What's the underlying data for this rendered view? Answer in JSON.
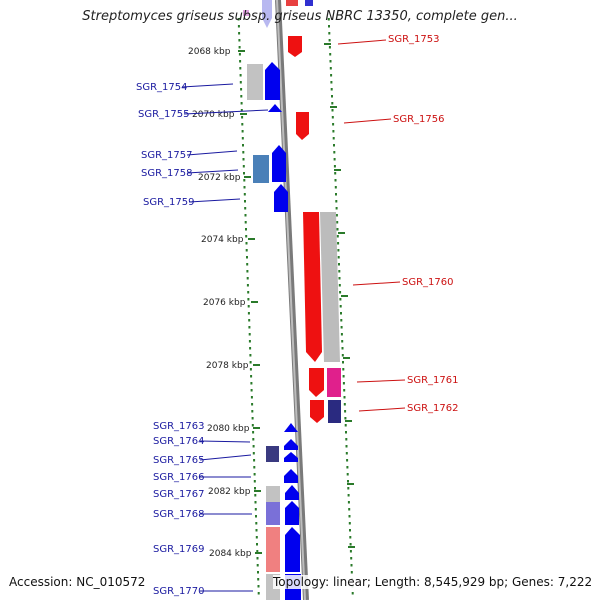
{
  "title": "Streptomyces griseus subsp. griseus NBRC 13350, complete gen...",
  "footer": {
    "accession": "Accession: NC_010572",
    "summary": "Topology: linear; Length: 8,545,929 bp; Genes: 7,222"
  },
  "colors": {
    "forward_gene": "#0000ee",
    "reverse_gene": "#ee0000",
    "label_forward": "#1a1aa0",
    "label_reverse": "#cc1111",
    "ruler_dots": "#2a7a2a",
    "backbone": "#8a8a8a"
  },
  "ruler_ticks": [
    {
      "label": "2068 kbp"
    },
    {
      "label": "2070 kbp"
    },
    {
      "label": "2072 kbp"
    },
    {
      "label": "2074 kbp"
    },
    {
      "label": "2076 kbp"
    },
    {
      "label": "2078 kbp"
    },
    {
      "label": "2080 kbp"
    },
    {
      "label": "2082 kbp"
    },
    {
      "label": "2084 kbp"
    }
  ],
  "left_labels": [
    {
      "label": "SGR_1754"
    },
    {
      "label": "SGR_1755"
    },
    {
      "label": "SGR_1757"
    },
    {
      "label": "SGR_1758"
    },
    {
      "label": "SGR_1759"
    },
    {
      "label": "SGR_1763"
    },
    {
      "label": "SGR_1764"
    },
    {
      "label": "SGR_1765"
    },
    {
      "label": "SGR_1766"
    },
    {
      "label": "SGR_1767"
    },
    {
      "label": "SGR_1768"
    },
    {
      "label": "SGR_1769"
    },
    {
      "label": "SGR_1770"
    }
  ],
  "right_labels": [
    {
      "label": "SGR_1753"
    },
    {
      "label": "SGR_1756"
    },
    {
      "label": "SGR_1760"
    },
    {
      "label": "SGR_1761"
    },
    {
      "label": "SGR_1762"
    }
  ]
}
